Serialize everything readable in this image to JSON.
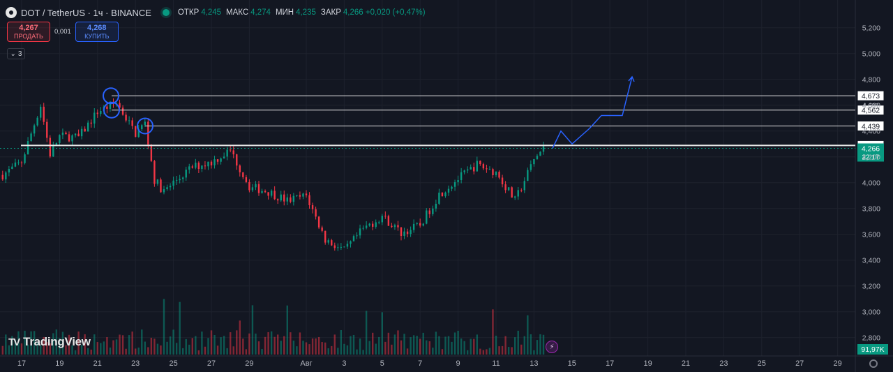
{
  "header": {
    "symbol_title": "DOT / TetherUS · 1ч · BINANCE",
    "ohlc": [
      {
        "k": "ОТКР",
        "v": "4,245"
      },
      {
        "k": "МАКС",
        "v": "4,274"
      },
      {
        "k": "МИН",
        "v": "4,235"
      },
      {
        "k": "ЗАКР",
        "v": "4,266 +0,020 (+0,47%)"
      }
    ]
  },
  "trade": {
    "sell_price": "4,267",
    "sell_label": "ПРОДАТЬ",
    "spread": "0,001",
    "buy_price": "4,268",
    "buy_label": "КУПИТЬ"
  },
  "indicators_count": "3",
  "branding": "TradingView",
  "colors": {
    "up": "#089981",
    "down": "#f23645",
    "drawing": "#2962ff",
    "bg": "#131722"
  },
  "chart_data": {
    "type": "candlestick",
    "symbol": "DOT / TetherUS",
    "interval": "1ч",
    "exchange": "BINANCE",
    "x_tick_labels": [
      "17",
      "19",
      "21",
      "23",
      "25",
      "27",
      "29",
      "Авг",
      "3",
      "5",
      "7",
      "9",
      "11",
      "13",
      "15",
      "17",
      "19",
      "21",
      "23",
      "25",
      "27",
      "29"
    ],
    "y_tick_labels": [
      "5,200",
      "5,000",
      "4,800",
      "4,600",
      "4,400",
      "4,200",
      "4,000",
      "3,800",
      "3,600",
      "3,400",
      "3,200",
      "3,000",
      "2,800"
    ],
    "y_range": [
      2,
      700,
      5,
      260
    ],
    "price_path": [
      {
        "x": "Jul 16",
        "price": 4.06
      },
      {
        "x": "Jul 17",
        "price": 4.16
      },
      {
        "x": "Jul 18",
        "price": 4.6
      },
      {
        "x": "Jul 18",
        "price": 4.22
      },
      {
        "x": "Jul 19",
        "price": 4.36
      },
      {
        "x": "Jul 20",
        "price": 4.35
      },
      {
        "x": "Jul 21",
        "price": 4.55
      },
      {
        "x": "Jul 22",
        "price": 4.62
      },
      {
        "x": "Jul 23",
        "price": 4.38
      },
      {
        "x": "Jul 23",
        "price": 4.46
      },
      {
        "x": "Jul 24",
        "price": 4.02
      },
      {
        "x": "Jul 24",
        "price": 3.93
      },
      {
        "x": "Jul 25",
        "price": 4.0
      },
      {
        "x": "Jul 26",
        "price": 4.12
      },
      {
        "x": "Jul 27",
        "price": 4.16
      },
      {
        "x": "Jul 28",
        "price": 4.25
      },
      {
        "x": "Jul 29",
        "price": 3.97
      },
      {
        "x": "Jul 30",
        "price": 3.93
      },
      {
        "x": "Jul 31",
        "price": 3.86
      },
      {
        "x": "Aug 1",
        "price": 3.9
      },
      {
        "x": "Aug 2",
        "price": 3.56
      },
      {
        "x": "Aug 3",
        "price": 3.47
      },
      {
        "x": "Aug 4",
        "price": 3.64
      },
      {
        "x": "Aug 5",
        "price": 3.74
      },
      {
        "x": "Aug 6",
        "price": 3.61
      },
      {
        "x": "Aug 7",
        "price": 3.67
      },
      {
        "x": "Aug 8",
        "price": 3.91
      },
      {
        "x": "Aug 9",
        "price": 4.03
      },
      {
        "x": "Aug 10",
        "price": 4.14
      },
      {
        "x": "Aug 11",
        "price": 4.08
      },
      {
        "x": "Aug 12",
        "price": 3.86
      },
      {
        "x": "Aug 13",
        "price": 4.18
      },
      {
        "x": "Aug 13",
        "price": 4.266
      }
    ],
    "volume_last": "91,97K",
    "current_price": {
      "label": "4,266",
      "countdown": "22:17"
    },
    "levels": [
      {
        "label": "4,673",
        "value": 4.673
      },
      {
        "label": "4,562",
        "value": 4.562
      },
      {
        "label": "4,439",
        "value": 4.439
      },
      {
        "label": "4,288",
        "value": 4.288
      }
    ],
    "extra_axis_label": "4,600",
    "circle_markers": [
      {
        "x": "Jul 21",
        "price": 4.673
      },
      {
        "x": "Jul 21",
        "price": 4.562
      },
      {
        "x": "Jul 23",
        "price": 4.439
      }
    ],
    "projection_path": [
      {
        "x": "Aug 13",
        "price": 4.266
      },
      {
        "x": "Aug 14",
        "price": 4.4
      },
      {
        "x": "Aug 15",
        "price": 4.3
      },
      {
        "x": "Aug 16",
        "price": 4.42
      },
      {
        "x": "Aug 17",
        "price": 4.52
      },
      {
        "x": "Aug 17",
        "price": 4.52
      },
      {
        "x": "Aug 18",
        "price": 4.82
      }
    ]
  }
}
